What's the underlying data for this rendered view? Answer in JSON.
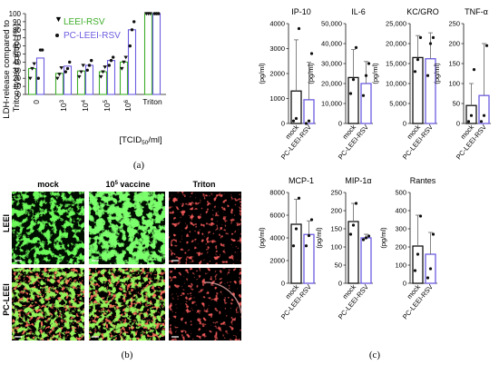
{
  "panels": {
    "a": "(a)",
    "b": "(b)",
    "c": "(c)"
  },
  "colors": {
    "leei": "#3fae2a",
    "pc_leei": "#6b5ce0",
    "mock": "#111111"
  },
  "chart_data": [
    {
      "id": "a",
      "type": "bar",
      "title": "",
      "ylabel": "LDH-release compared to Triton-lysed control [%]",
      "ylabel_lines": [
        "LDH-release compared to",
        "Triton-lysed control [%]"
      ],
      "xlabel": "[TCID50/ml]",
      "xlabel_parts": {
        "pre": "[TCID",
        "sub": "50",
        "post": "/ml]"
      },
      "ylim": [
        0,
        100
      ],
      "yticks": [
        0,
        10,
        20,
        30,
        40,
        50,
        60,
        70,
        80,
        90,
        100
      ],
      "categories": [
        {
          "base": "0",
          "exp": ""
        },
        {
          "base": "10",
          "exp": "3"
        },
        {
          "base": "10",
          "exp": "4"
        },
        {
          "base": "10",
          "exp": "5"
        },
        {
          "base": "10",
          "exp": "6"
        },
        {
          "base": "Triton",
          "exp": ""
        }
      ],
      "legend": [
        "LEEI-RSV",
        "PC-LEEI-RSV"
      ],
      "series": [
        {
          "name": "LEEI-RSV",
          "values": [
            32,
            26,
            29,
            28,
            40,
            100
          ],
          "points": [
            [
              20,
              32,
              38
            ],
            [
              20,
              25,
              33
            ],
            [
              22,
              28,
              36
            ],
            [
              22,
              28,
              34
            ],
            [
              32,
              40,
              46
            ],
            [
              100,
              100,
              100
            ]
          ]
        },
        {
          "name": "PC-LEEI-RSV",
          "values": [
            45,
            35,
            36,
            42,
            80,
            100
          ],
          "points": [
            [
              20,
              55,
              55
            ],
            [
              28,
              32,
              40
            ],
            [
              30,
              36,
              42
            ],
            [
              36,
              42,
              46
            ],
            [
              60,
              80,
              90
            ],
            [
              100,
              100,
              100
            ]
          ]
        }
      ]
    },
    {
      "id": "ip10",
      "type": "bar",
      "title": "IP-10",
      "ylabel": "(pg/ml)",
      "ylim": [
        0,
        4000
      ],
      "yticks": [
        "0",
        "1000",
        "2000",
        "3000",
        "4000"
      ],
      "categories": [
        "mock",
        "PC-LEEI-RSV"
      ],
      "values": [
        1300,
        950
      ],
      "errors": [
        2050,
        1500
      ],
      "points": [
        [
          100,
          200,
          3800
        ],
        [
          0,
          100,
          2800
        ]
      ]
    },
    {
      "id": "il6",
      "type": "bar",
      "title": "IL-6",
      "ylabel": "(pg/ml)",
      "ylim": [
        0,
        50000
      ],
      "yticks": [
        "0",
        "10,000",
        "20,000",
        "30,000",
        "40,000",
        "50,000"
      ],
      "categories": [
        "mock",
        "PC-LEEI-RSV"
      ],
      "values": [
        23000,
        20000
      ],
      "errors": [
        14000,
        11000
      ],
      "points": [
        [
          15000,
          22000,
          38000
        ],
        [
          14000,
          24000,
          30000
        ]
      ]
    },
    {
      "id": "kcgro",
      "type": "bar",
      "title": "KC/GRO",
      "ylabel": "(pg/ml)",
      "ylim": [
        0,
        25000
      ],
      "yticks": [
        "0",
        "5,000",
        "10,000",
        "15,000",
        "20,000",
        "25,000"
      ],
      "categories": [
        "mock",
        "PC-LEEI-RSV"
      ],
      "values": [
        16500,
        16200
      ],
      "errors": [
        5500,
        6500
      ],
      "points": [
        [
          13000,
          16000,
          21500
        ],
        [
          12000,
          20000,
          21500
        ]
      ]
    },
    {
      "id": "tnfa",
      "type": "bar",
      "title": "TNF-α",
      "ylabel": "(pg/ml)",
      "ylim": [
        0,
        250
      ],
      "yticks": [
        "0",
        "50",
        "100",
        "150",
        "200",
        "250"
      ],
      "categories": [
        "mock",
        "PC-LEEI-RSV"
      ],
      "values": [
        45,
        70
      ],
      "errors": [
        55,
        130
      ],
      "points": [
        [
          5,
          20,
          135
        ],
        [
          5,
          20,
          195
        ]
      ]
    },
    {
      "id": "mcp1",
      "type": "bar",
      "title": "MCP-1",
      "ylabel": "(pg/ml)",
      "ylim": [
        0,
        8000
      ],
      "yticks": [
        "0",
        "2000",
        "4000",
        "6000",
        "8000"
      ],
      "categories": [
        "mock",
        "PC-LEEI-RSV"
      ],
      "values": [
        5200,
        4300
      ],
      "errors": [
        2200,
        1200
      ],
      "points": [
        [
          3300,
          4800,
          7500
        ],
        [
          3300,
          4200,
          5600
        ]
      ]
    },
    {
      "id": "mip1a",
      "type": "bar",
      "title": "MIP-1α",
      "ylabel": "(pg/ml)",
      "ylim": [
        0,
        250
      ],
      "yticks": [
        "0",
        "50",
        "100",
        "150",
        "200",
        "250"
      ],
      "categories": [
        "mock",
        "PC-LEEI-RSV"
      ],
      "values": [
        170,
        125
      ],
      "errors": [
        50,
        10
      ],
      "points": [
        [
          135,
          160,
          220
        ],
        [
          120,
          125,
          130
        ]
      ]
    },
    {
      "id": "rantes",
      "type": "bar",
      "title": "Rantes",
      "ylabel": "(pg/ml)",
      "ylim": [
        0,
        500
      ],
      "yticks": [
        "0",
        "100",
        "200",
        "300",
        "400",
        "500"
      ],
      "categories": [
        "mock",
        "PC-LEEI-RSV"
      ],
      "values": [
        205,
        160
      ],
      "errors": [
        170,
        120
      ],
      "points": [
        [
          70,
          160,
          370
        ],
        [
          30,
          80,
          270
        ]
      ]
    }
  ],
  "images": {
    "col_labels": [
      "mock",
      "vaccine",
      "Triton"
    ],
    "vaccine_label_parts": {
      "base": "10",
      "exp": "5",
      "text": " vaccine"
    },
    "row_labels": [
      "LEEI",
      "PC-LEEI"
    ]
  }
}
